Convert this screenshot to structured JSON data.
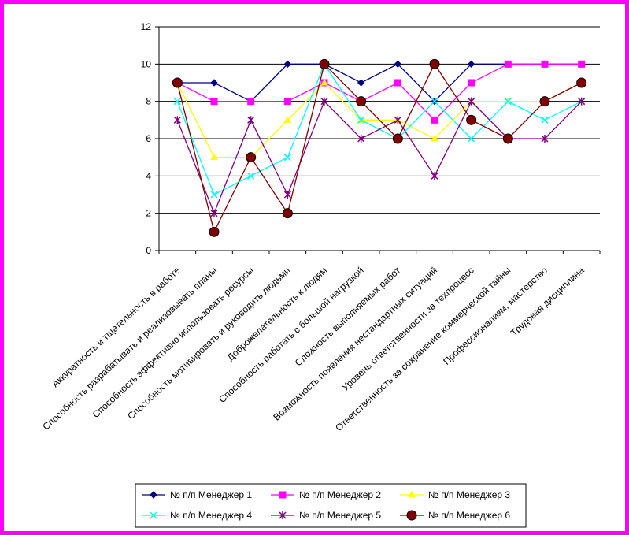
{
  "chart_data": {
    "type": "line",
    "ylim": [
      0,
      12
    ],
    "yticks": [
      0,
      2,
      4,
      6,
      8,
      10,
      12
    ],
    "grid": "horizontal",
    "legend_position": "bottom",
    "border_color": "#ff00ff",
    "categories": [
      "Аккуратность и тщательность в работе",
      "Способность разрабатывать и реализовывать планы",
      "Способность эффективно использовать ресурсы",
      "Способность мотивировать и руководить людьми",
      "Доброжелательность к людям",
      "Способность работать с большой нагрузкой",
      "Сложность выполняемых работ",
      "Возможность появления нестандартных ситуаций",
      "Уровень ответственности за техпроцесс",
      "Ответственность за сохранение коммерческой тайны",
      "Профессионализм, мастерство",
      "Трудовая дисциплина"
    ],
    "series": [
      {
        "name": "№ п/п Менеджер 1",
        "color": "#000080",
        "marker": "diamond",
        "values": [
          9,
          9,
          8,
          10,
          10,
          9,
          10,
          8,
          10,
          10,
          10,
          10
        ]
      },
      {
        "name": "№ п/п Менеджер 2",
        "color": "#ff00ff",
        "marker": "square",
        "values": [
          9,
          8,
          8,
          8,
          9,
          8,
          9,
          7,
          9,
          10,
          10,
          10
        ]
      },
      {
        "name": "№ п/п Менеджер 3",
        "color": "#ffff00",
        "marker": "triangle",
        "values": [
          9,
          5,
          5,
          7,
          9,
          7,
          7,
          6,
          8,
          8,
          8,
          9
        ]
      },
      {
        "name": "№ п/п Менеджер 4",
        "color": "#00ffff",
        "marker": "x",
        "values": [
          8,
          3,
          4,
          5,
          10,
          7,
          6,
          8,
          6,
          8,
          7,
          8
        ]
      },
      {
        "name": "№ п/п Менеджер 5",
        "color": "#800080",
        "marker": "star",
        "values": [
          7,
          2,
          7,
          3,
          8,
          6,
          7,
          4,
          8,
          6,
          6,
          8
        ]
      },
      {
        "name": "№ п/п Менеджер 6",
        "color": "#800000",
        "marker": "circle",
        "values": [
          9,
          1,
          5,
          2,
          10,
          8,
          6,
          10,
          7,
          6,
          8,
          9
        ]
      }
    ]
  }
}
